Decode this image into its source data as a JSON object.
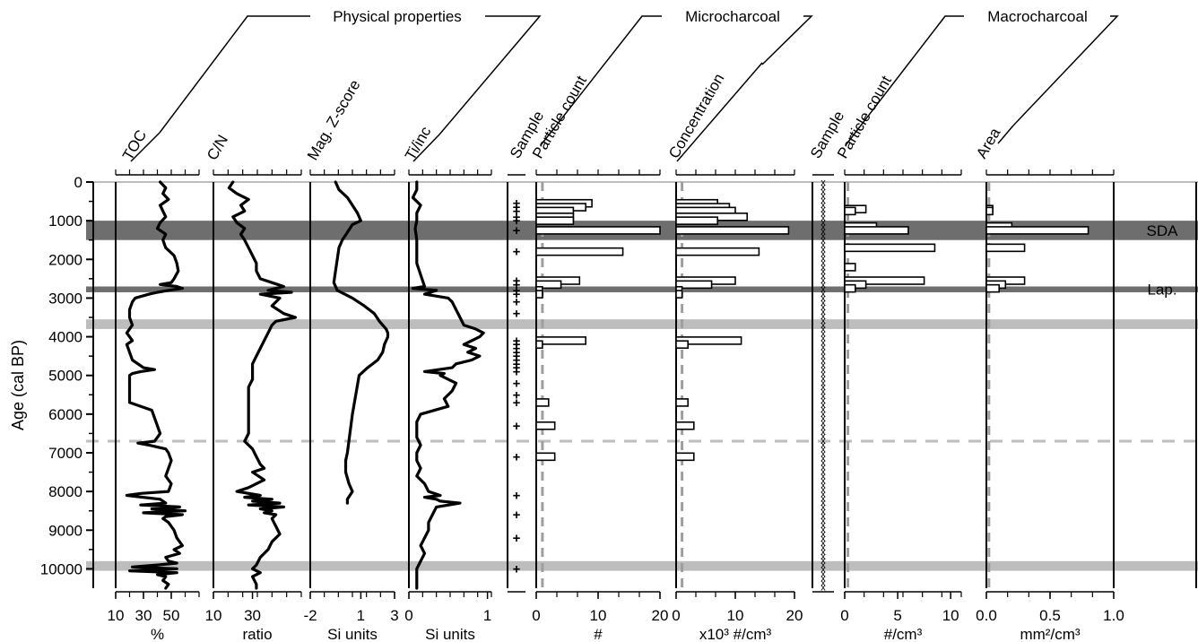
{
  "chart_data": {
    "type": "line",
    "title": "",
    "y_axis": {
      "label": "Age (cal BP)",
      "range": [
        0,
        10500
      ],
      "ticks": [
        0,
        1000,
        2000,
        3000,
        4000,
        5000,
        6000,
        7000,
        8000,
        9000,
        10000
      ],
      "inverted": true
    },
    "groups": [
      {
        "label": "Physical properties"
      },
      {
        "label": "Microcharcoal"
      },
      {
        "label": "Macrocharcoal"
      }
    ],
    "bands": [
      {
        "name": "SDA",
        "from": 1000,
        "to": 1500,
        "shade": "dark",
        "label": "SDA"
      },
      {
        "name": "Lap",
        "from": 2700,
        "to": 2850,
        "shade": "dark",
        "label": "Lap."
      },
      {
        "name": "band-3600",
        "from": 3550,
        "to": 3800,
        "shade": "light",
        "label": ""
      },
      {
        "name": "band-9900",
        "from": 9800,
        "to": 10050,
        "shade": "light",
        "label": ""
      }
    ],
    "dashed_line_age": 6700,
    "tracks": [
      {
        "name": "TOC",
        "kind": "line",
        "unit": "%",
        "xlim": [
          10,
          70
        ],
        "xticks": [
          10,
          30,
          50
        ],
        "xticklabels": [
          "10",
          "30",
          "50"
        ],
        "series": [
          {
            "name": "TOC",
            "age": [
              0,
              150,
              300,
              450,
              600,
              750,
              900,
              1050,
              1200,
              1350,
              1500,
              1700,
              1900,
              2100,
              2300,
              2500,
              2600,
              2650,
              2700,
              2750,
              2800,
              2850,
              2900,
              3000,
              3100,
              3300,
              3500,
              3700,
              3900,
              4000,
              4100,
              4200,
              4400,
              4600,
              4800,
              4850,
              4900,
              4950,
              5000,
              5200,
              5500,
              5700,
              5900,
              6100,
              6300,
              6500,
              6700,
              6750,
              6800,
              6900,
              7000,
              7200,
              7400,
              7600,
              7800,
              8000,
              8050,
              8100,
              8200,
              8300,
              8350,
              8400,
              8450,
              8500,
              8550,
              8600,
              8650,
              8700,
              8800,
              9000,
              9200,
              9400,
              9500,
              9600,
              9700,
              9800,
              9850,
              9900,
              9950,
              10000,
              10050,
              10100,
              10150,
              10200,
              10300,
              10400,
              10500
            ],
            "values": [
              42,
              46,
              44,
              48,
              42,
              44,
              46,
              42,
              40,
              46,
              44,
              46,
              52,
              54,
              55,
              52,
              50,
              42,
              54,
              58,
              48,
              40,
              34,
              24,
              22,
              20,
              20,
              22,
              18,
              20,
              22,
              18,
              20,
              22,
              30,
              38,
              28,
              22,
              20,
              20,
              20,
              20,
              36,
              38,
              40,
              42,
              38,
              26,
              34,
              46,
              48,
              50,
              48,
              46,
              50,
              48,
              28,
              18,
              42,
              46,
              28,
              56,
              36,
              60,
              30,
              58,
              46,
              44,
              48,
              52,
              54,
              58,
              52,
              56,
              46,
              48,
              54,
              40,
              22,
              54,
              20,
              54,
              40,
              46,
              44,
              48,
              46
            ]
          }
        ]
      },
      {
        "name": "C/N",
        "kind": "line",
        "unit": "ratio",
        "xlim": [
          10,
          55
        ],
        "xticks": [
          10,
          30
        ],
        "xticklabels": [
          "10",
          "30"
        ],
        "series": [
          {
            "name": "C/N",
            "age": [
              0,
              150,
              300,
              450,
              600,
              750,
              900,
              1050,
              1200,
              1350,
              1500,
              1700,
              1900,
              2100,
              2300,
              2500,
              2600,
              2700,
              2750,
              2800,
              2850,
              2900,
              3000,
              3200,
              3400,
              3500,
              3600,
              3700,
              3900,
              4100,
              4300,
              4500,
              4700,
              4900,
              5100,
              5300,
              5500,
              5700,
              5900,
              6100,
              6300,
              6500,
              6700,
              6900,
              7100,
              7300,
              7400,
              7500,
              7700,
              7900,
              8000,
              8100,
              8150,
              8200,
              8250,
              8300,
              8350,
              8400,
              8450,
              8500,
              8550,
              8600,
              8700,
              8900,
              9100,
              9300,
              9500,
              9700,
              9900,
              10000,
              10100,
              10200,
              10400,
              10500
            ],
            "values": [
              20,
              18,
              22,
              28,
              24,
              26,
              20,
              22,
              26,
              24,
              26,
              28,
              30,
              32,
              32,
              34,
              40,
              46,
              42,
              38,
              50,
              34,
              44,
              40,
              46,
              52,
              42,
              40,
              38,
              36,
              34,
              32,
              30,
              30,
              30,
              28,
              28,
              28,
              28,
              28,
              28,
              28,
              26,
              30,
              32,
              34,
              36,
              30,
              36,
              28,
              22,
              34,
              26,
              40,
              30,
              44,
              28,
              46,
              34,
              40,
              36,
              42,
              40,
              42,
              44,
              40,
              38,
              34,
              32,
              30,
              34,
              30,
              32,
              32
            ]
          }
        ]
      },
      {
        "name": "Mag. Z-score",
        "kind": "line",
        "unit": "Si units",
        "xlim": [
          -2,
          3
        ],
        "xticks": [
          -2,
          1,
          3
        ],
        "xticklabels": [
          "-2",
          "1",
          "3"
        ],
        "series": [
          {
            "name": "Mag. Z-score",
            "age": [
              0,
              200,
              400,
              600,
              800,
              1000,
              1100,
              1300,
              1500,
              1700,
              2000,
              2300,
              2600,
              2800,
              3000,
              3200,
              3400,
              3600,
              3800,
              3900,
              4000,
              4200,
              4400,
              4600,
              4800,
              5000,
              6000,
              7000,
              7200,
              7500,
              7800,
              8000,
              8200,
              8300
            ],
            "values": [
              -0.5,
              -0.3,
              0.2,
              0.5,
              0.8,
              1.0,
              0.5,
              0.2,
              -0.1,
              -0.3,
              -0.4,
              -0.5,
              -0.6,
              -0.4,
              0.5,
              1.2,
              1.8,
              2.1,
              2.5,
              2.6,
              2.6,
              2.4,
              2.3,
              2.0,
              1.4,
              0.9,
              0.5,
              0.2,
              0.1,
              0.1,
              0.3,
              0.5,
              0.2,
              0.2
            ]
          }
        ]
      },
      {
        "name": "Ti/inc",
        "kind": "line",
        "unit": "Si units",
        "xlim": [
          0,
          1.05
        ],
        "xticks": [
          0,
          1
        ],
        "xticklabels": [
          "0",
          "1"
        ],
        "series": [
          {
            "name": "Ti/inc",
            "age": [
              0,
              200,
              400,
              600,
              800,
              1000,
              1200,
              1500,
              1800,
              2100,
              2400,
              2700,
              2750,
              2800,
              2900,
              3000,
              3100,
              3300,
              3500,
              3700,
              3800,
              3900,
              4000,
              4100,
              4200,
              4300,
              4400,
              4500,
              4600,
              4700,
              4800,
              4900,
              4950,
              5000,
              5200,
              5400,
              5600,
              5800,
              6000,
              6200,
              6400,
              6600,
              6800,
              7000,
              7200,
              7400,
              7600,
              7800,
              8000,
              8100,
              8150,
              8200,
              8250,
              8300,
              8400,
              8600,
              8800,
              9000,
              9200,
              9400,
              9600,
              9800,
              10000,
              10200,
              10400,
              10500
            ],
            "values": [
              0.1,
              0.1,
              0.05,
              0.15,
              0.1,
              0.1,
              0.08,
              0.1,
              0.1,
              0.1,
              0.15,
              0.2,
              0.05,
              0.35,
              0.2,
              0.5,
              0.55,
              0.6,
              0.65,
              0.7,
              0.85,
              0.95,
              0.9,
              0.8,
              0.7,
              0.85,
              0.75,
              0.9,
              0.8,
              0.6,
              0.55,
              0.2,
              0.45,
              0.4,
              0.6,
              0.55,
              0.45,
              0.5,
              0.15,
              0.1,
              0.1,
              0.1,
              0.15,
              0.1,
              0.1,
              0.15,
              0.1,
              0.2,
              0.25,
              0.4,
              0.2,
              0.35,
              0.4,
              0.65,
              0.35,
              0.3,
              0.25,
              0.25,
              0.2,
              0.15,
              0.2,
              0.15,
              0.1,
              0.1,
              0.1,
              0.1
            ]
          }
        ]
      },
      {
        "name": "Sample",
        "kind": "markers",
        "marker": "+",
        "samples_age": [
          550,
          650,
          750,
          900,
          1000,
          1250,
          1800,
          2550,
          2650,
          2800,
          2900,
          3100,
          3400,
          4100,
          4200,
          4300,
          4400,
          4500,
          4600,
          4700,
          4800,
          4900,
          5200,
          5500,
          5700,
          6300,
          7100,
          8100,
          8600,
          9200,
          10000
        ]
      },
      {
        "name": "Particle count",
        "kind": "bar",
        "unit": "#",
        "xlim": [
          0,
          20
        ],
        "xticks": [
          0,
          10,
          20
        ],
        "xticklabels": [
          "0",
          "10",
          "20"
        ],
        "dashed_x": 1,
        "bars": {
          "age": [
            550,
            650,
            750,
            900,
            1000,
            1250,
            1800,
            2550,
            2650,
            2800,
            2900,
            4100,
            4200,
            5700,
            6300,
            7100
          ],
          "values": [
            9,
            8,
            6,
            6,
            6,
            20,
            14,
            7,
            4,
            1,
            1,
            8,
            1,
            2,
            3,
            3
          ]
        }
      },
      {
        "name": "Concentration",
        "kind": "bar",
        "unit": "x10³ #/cm³",
        "xlim": [
          0,
          20
        ],
        "xticks": [
          0,
          10,
          20
        ],
        "xticklabels": [
          "0",
          "10",
          "20"
        ],
        "dashed_x": 1,
        "bars": {
          "age": [
            550,
            650,
            750,
            900,
            1000,
            1250,
            1800,
            2550,
            2650,
            2800,
            2900,
            4100,
            4200,
            5700,
            6300,
            7100
          ],
          "values": [
            7,
            9,
            10,
            12,
            7,
            19,
            14,
            10,
            6,
            1,
            1,
            11,
            2,
            2,
            3,
            3
          ]
        }
      },
      {
        "name": "Sample",
        "kind": "markers",
        "marker": "x",
        "sample_range": [
          0,
          10550
        ]
      },
      {
        "name": "Particle count",
        "kind": "bar",
        "unit": "#/cm³",
        "xlim": [
          0,
          11
        ],
        "xticks": [
          0,
          5,
          10
        ],
        "xticklabels": [
          "0",
          "5",
          "10"
        ],
        "dashed_x": 0.3,
        "bars": {
          "age": [
            700,
            750,
            1150,
            1250,
            1700,
            2200,
            2550,
            2650,
            2750
          ],
          "values": [
            2,
            1,
            3,
            6,
            8.5,
            1,
            7.5,
            2,
            1
          ]
        }
      },
      {
        "name": "Area",
        "kind": "bar",
        "unit": "mm²/cm³",
        "xlim": [
          0,
          1.0
        ],
        "xticks": [
          0,
          0.5,
          1.0
        ],
        "xticklabels": [
          "0.0",
          "0.5",
          "1.0"
        ],
        "dashed_x": 0.02,
        "bars": {
          "age": [
            700,
            750,
            1150,
            1250,
            1700,
            2550,
            2650,
            2750
          ],
          "values": [
            0.05,
            0.05,
            0.2,
            0.8,
            0.3,
            0.3,
            0.15,
            0.1
          ]
        }
      }
    ]
  }
}
